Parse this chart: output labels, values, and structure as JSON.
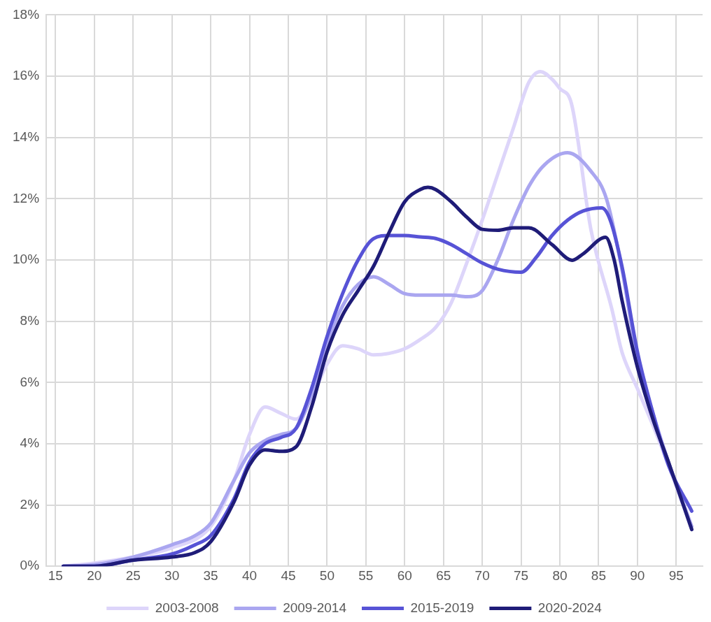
{
  "chart_data": {
    "type": "line",
    "xlim": [
      13.8,
      98.4
    ],
    "xticks": [
      15,
      20,
      25,
      30,
      35,
      40,
      45,
      50,
      55,
      60,
      65,
      70,
      75,
      80,
      85,
      90,
      95
    ],
    "ylim": [
      0,
      18
    ],
    "yticks": [
      {
        "value": 0,
        "label": "0%"
      },
      {
        "value": 2,
        "label": "2%"
      },
      {
        "value": 4,
        "label": "4%"
      },
      {
        "value": 6,
        "label": "6%"
      },
      {
        "value": 8,
        "label": "8%"
      },
      {
        "value": 10,
        "label": "10%"
      },
      {
        "value": 12,
        "label": "12%"
      },
      {
        "value": 14,
        "label": "14%"
      },
      {
        "value": 16,
        "label": "16%"
      },
      {
        "value": 18,
        "label": "18%"
      }
    ],
    "grid": true,
    "legend": "bottom",
    "marker": "none",
    "line_style": "solid",
    "series": [
      {
        "name": "2003-2008",
        "color": "#ddd5fa",
        "x": [
          16,
          20,
          25,
          30,
          35,
          38,
          40,
          42,
          44,
          46,
          48,
          50,
          52,
          54,
          56,
          58,
          60,
          62,
          64,
          66,
          68,
          70,
          72,
          74,
          76,
          77.5,
          79,
          80,
          81.5,
          84,
          86.7,
          88,
          90,
          92,
          94,
          97
        ],
        "values": [
          0,
          0.1,
          0.3,
          0.6,
          1.3,
          2.8,
          4.3,
          5.2,
          5.0,
          4.8,
          5.5,
          6.6,
          7.2,
          7.1,
          6.9,
          6.95,
          7.1,
          7.4,
          7.8,
          8.6,
          9.9,
          11.3,
          12.8,
          14.3,
          15.8,
          16.15,
          15.9,
          15.6,
          15.1,
          11.0,
          8.4,
          7.0,
          5.8,
          4.6,
          3.3,
          1.2
        ]
      },
      {
        "name": "2009-2014",
        "color": "#aaa6f0",
        "x": [
          16,
          20,
          25,
          30,
          33,
          35,
          38,
          40,
          42,
          44,
          46,
          48,
          50,
          52,
          54,
          56,
          58,
          60,
          62,
          64,
          66,
          68,
          70,
          72,
          74,
          76,
          78,
          81,
          84,
          86,
          88,
          90,
          92,
          94,
          97
        ],
        "values": [
          0,
          0.05,
          0.3,
          0.7,
          1.0,
          1.4,
          2.8,
          3.7,
          4.1,
          4.3,
          4.5,
          5.6,
          7.3,
          8.5,
          9.2,
          9.45,
          9.2,
          8.9,
          8.85,
          8.85,
          8.85,
          8.8,
          9.0,
          10.0,
          11.3,
          12.4,
          13.1,
          13.5,
          12.9,
          12.0,
          9.7,
          6.8,
          5.0,
          3.4,
          1.3
        ]
      },
      {
        "name": "2015-2019",
        "color": "#5753d6",
        "x": [
          16,
          20,
          25,
          30,
          33,
          35,
          38,
          40,
          42,
          44,
          46,
          48,
          50,
          52,
          54,
          56,
          58,
          60,
          62,
          64,
          66,
          68,
          70,
          72,
          75,
          77,
          79,
          81,
          83,
          85.4,
          86.5,
          88,
          90,
          92,
          94,
          97
        ],
        "values": [
          0,
          0,
          0.2,
          0.4,
          0.7,
          1.0,
          2.2,
          3.4,
          4.0,
          4.2,
          4.5,
          5.8,
          7.5,
          8.9,
          10.0,
          10.7,
          10.8,
          10.8,
          10.75,
          10.7,
          10.5,
          10.2,
          9.9,
          9.7,
          9.6,
          10.1,
          10.8,
          11.3,
          11.6,
          11.7,
          11.3,
          9.8,
          7.0,
          5.0,
          3.3,
          1.8
        ]
      },
      {
        "name": "2020-2024",
        "color": "#1f1c78",
        "x": [
          16,
          20,
          25,
          30,
          33,
          35,
          38,
          40,
          42,
          44,
          46,
          48,
          50,
          52,
          54,
          56,
          58,
          60,
          62,
          63,
          64,
          66,
          68,
          70,
          72,
          74,
          76,
          79,
          81.6,
          83,
          85.9,
          87,
          88,
          90,
          92,
          94,
          97
        ],
        "values": [
          0,
          0,
          0.2,
          0.3,
          0.45,
          0.8,
          2.1,
          3.3,
          3.8,
          3.75,
          3.9,
          5.2,
          7.0,
          8.2,
          9.0,
          9.8,
          10.9,
          11.9,
          12.3,
          12.37,
          12.3,
          11.9,
          11.4,
          11.0,
          10.97,
          11.05,
          11.05,
          10.5,
          9.99,
          10.2,
          10.74,
          10.0,
          8.7,
          6.5,
          4.8,
          3.4,
          1.2
        ]
      }
    ]
  }
}
